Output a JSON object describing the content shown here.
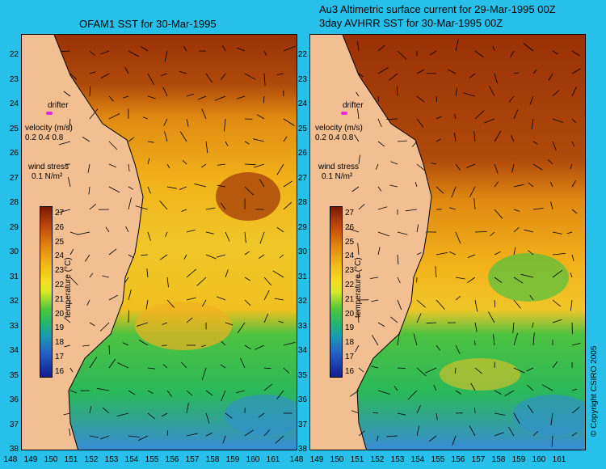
{
  "left_panel": {
    "title": "OFAM1 SST for 30-Mar-1995",
    "drifter_label": "drifter",
    "velocity_label": "velocity (m/s)",
    "velocity_scale": "0.2 0.4 0.8",
    "wind_label": "wind stress",
    "wind_scale": "0.1 N/m²"
  },
  "right_panel": {
    "title_line1": "Au3 Altimetric surface current for 29-Mar-1995 00Z",
    "title_line2": "3day AVHRR SST for 30-Mar-1995 00Z",
    "drifter_label": "drifter",
    "velocity_label": "velocity (m/s)",
    "velocity_scale": "0.2 0.4 0.8",
    "wind_label": "wind stress",
    "wind_scale": "0.1 N/m²"
  },
  "latitude_labels": [
    "22",
    "23",
    "24",
    "25",
    "26",
    "27",
    "28",
    "29",
    "30",
    "31",
    "32",
    "33",
    "34",
    "35",
    "36",
    "37",
    "38"
  ],
  "left_longitude_labels": [
    "148",
    "149",
    "150",
    "151",
    "152",
    "153",
    "154",
    "155",
    "156",
    "157",
    "158",
    "159",
    "160",
    "161"
  ],
  "right_longitude_labels": [
    "148",
    "149",
    "150",
    "151",
    "152",
    "153",
    "154",
    "155",
    "156",
    "157",
    "158",
    "159",
    "160",
    "161"
  ],
  "colorbar": {
    "ticks": [
      "27",
      "26",
      "25",
      "24",
      "23",
      "22",
      "21",
      "20",
      "19",
      "18",
      "17",
      "16"
    ],
    "unit_label": "temperature (°C)"
  },
  "copyright": "© Copyright CSIRO 2005",
  "colors": {
    "background": "#27c0ea",
    "land": "#f2bf92",
    "warm": "#a83a08",
    "mid": "#f0c020",
    "cool": "#3cc050",
    "drifter": "#e028e0"
  }
}
